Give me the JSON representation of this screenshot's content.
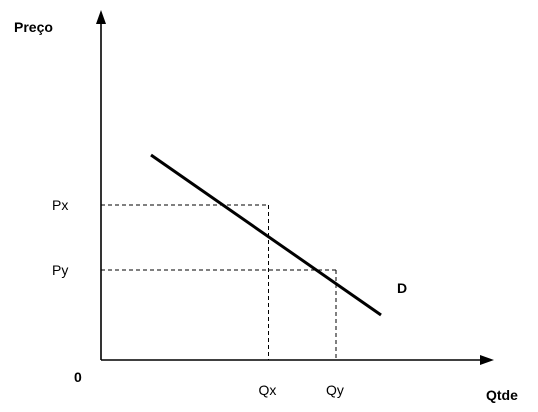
{
  "chart_data": {
    "type": "line",
    "ylabel": "Preço",
    "xlabel": "Qtde",
    "origin_label": "0",
    "series": [
      {
        "name": "D",
        "points": [
          [
            0.2,
            0.82
          ],
          [
            1.12,
            0.18
          ]
        ]
      }
    ],
    "reference_points": [
      {
        "x_label": "Qx",
        "y_label": "Px",
        "x": 0.67,
        "y": 0.62
      },
      {
        "x_label": "Qy",
        "y_label": "Py",
        "x": 0.94,
        "y": 0.36
      }
    ],
    "grid": false,
    "line_color": "#000000"
  }
}
